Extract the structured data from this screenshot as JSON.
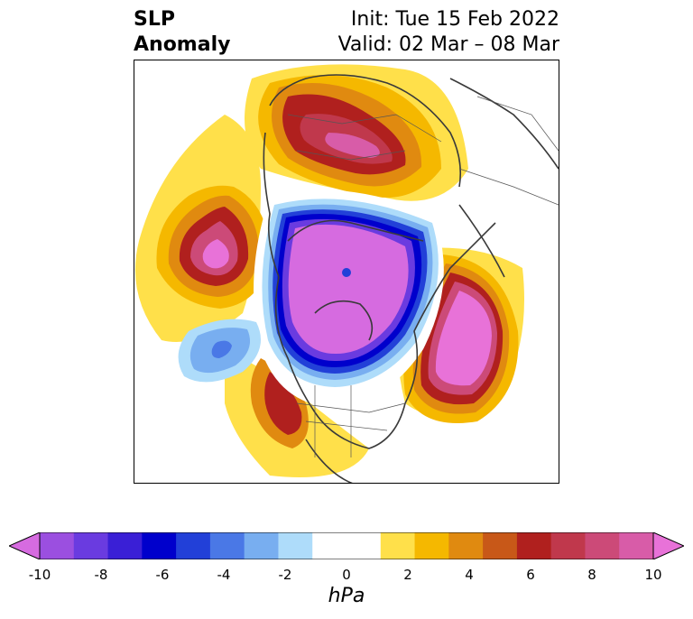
{
  "title": {
    "left_line1": "SLP",
    "left_line2": "Anomaly",
    "right_line1": "Init: Tue 15 Feb 2022",
    "right_line2": "Valid: 02 Mar – 08 Mar"
  },
  "colorbar": {
    "unit": "hPa",
    "ticks": [
      "-10",
      "-8",
      "-6",
      "-4",
      "-2",
      "0",
      "2",
      "4",
      "6",
      "8",
      "10"
    ],
    "min": -10,
    "max": 10,
    "extend": "both",
    "colors": [
      "#d66be0",
      "#9b4fe0",
      "#6a3be0",
      "#3a1fd6",
      "#0000cc",
      "#2240d8",
      "#4a78e6",
      "#78aef0",
      "#aedcfa",
      "#ffffff",
      "#ffffff",
      "#ffe04a",
      "#f5b800",
      "#e08a10",
      "#c85818",
      "#b0201e",
      "#c0384c",
      "#cc4a78",
      "#d85ca8",
      "#e872d8"
    ]
  },
  "map": {
    "projection": "north-polar-stereographic",
    "features": [
      {
        "name": "pacific-high-anomaly",
        "sign": "positive",
        "max_hpa": 10
      },
      {
        "name": "north-atlantic-high-anomaly",
        "sign": "positive",
        "max_hpa": 10
      },
      {
        "name": "eurasia-high-anomaly",
        "sign": "positive",
        "max_hpa": 8
      },
      {
        "name": "arctic-low-anomaly",
        "sign": "negative",
        "min_hpa": -10
      },
      {
        "name": "north-pacific-low-anomaly",
        "sign": "negative",
        "min_hpa": -4
      }
    ]
  }
}
